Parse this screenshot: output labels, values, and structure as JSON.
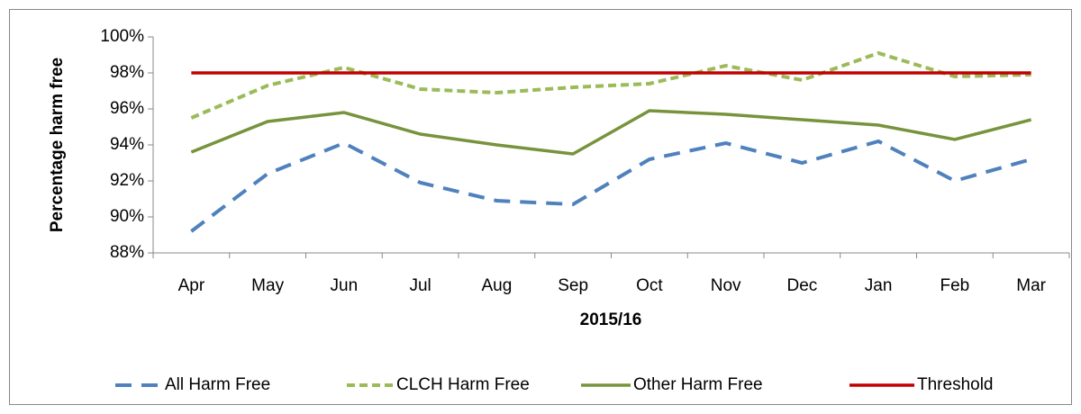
{
  "chart_data": {
    "type": "line",
    "x_label": "2015/16",
    "y_label": "Percentage harm free",
    "categories": [
      "Apr",
      "May",
      "Jun",
      "Jul",
      "Aug",
      "Sep",
      "Oct",
      "Nov",
      "Dec",
      "Jan",
      "Feb",
      "Mar"
    ],
    "series": [
      {
        "name": "All Harm Free",
        "color": "#4f81bd",
        "line_style": "long-dash",
        "values": [
          89.2,
          92.4,
          94.1,
          91.9,
          90.9,
          90.7,
          93.2,
          94.1,
          93.0,
          94.2,
          92.0,
          93.2
        ]
      },
      {
        "name": "CLCH Harm Free",
        "color": "#9bbb59",
        "line_style": "dash",
        "values": [
          95.5,
          97.3,
          98.3,
          97.1,
          96.9,
          97.2,
          97.4,
          98.4,
          97.6,
          99.1,
          97.8,
          97.9
        ]
      },
      {
        "name": "Other Harm Free",
        "color": "#77933c",
        "line_style": "solid",
        "values": [
          93.6,
          95.3,
          95.8,
          94.6,
          94.0,
          93.5,
          95.9,
          95.7,
          95.4,
          95.1,
          94.3,
          95.4
        ]
      },
      {
        "name": "Threshold",
        "color": "#c00000",
        "line_style": "solid",
        "values": [
          98,
          98,
          98,
          98,
          98,
          98,
          98,
          98,
          98,
          98,
          98,
          98
        ]
      }
    ],
    "ylim": [
      88,
      100
    ],
    "yticks": [
      {
        "value": 88,
        "label": "88%"
      },
      {
        "value": 90,
        "label": "90%"
      },
      {
        "value": 92,
        "label": "92%"
      },
      {
        "value": 94,
        "label": "94%"
      },
      {
        "value": 96,
        "label": "96%"
      },
      {
        "value": 98,
        "label": "98%"
      },
      {
        "value": 100,
        "label": "100%"
      }
    ],
    "grid": false,
    "legend": "bottom"
  }
}
